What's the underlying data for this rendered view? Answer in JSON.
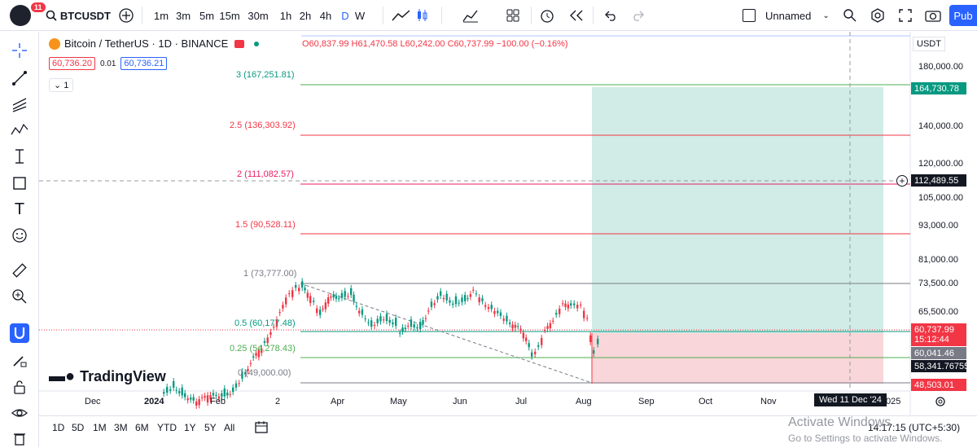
{
  "topbar": {
    "badge": "11",
    "symbol": "BTCUSDT",
    "intervals": [
      "1m",
      "3m",
      "5m",
      "15m",
      "30m",
      "1h",
      "2h",
      "4h",
      "D",
      "W"
    ],
    "active_interval": "D",
    "layout_name": "Unnamed",
    "publish": "Pub"
  },
  "legend": {
    "title": "Bitcoin / TetherUS · 1D · BINANCE",
    "ohlc": "O60,837.99 H61,470.58 L60,242.00 C60,737.99 −100.00 (−0.16%)",
    "bid": "60,736.20",
    "spread": "0.01",
    "ask": "60,736.21",
    "collapse_count": "1"
  },
  "axis": {
    "currency": "USDT",
    "ticks": [
      {
        "label": "180,000.00",
        "value": 180000
      },
      {
        "label": "140,000.00",
        "value": 140000
      },
      {
        "label": "120,000.00",
        "value": 120000
      },
      {
        "label": "105,000.00",
        "value": 105000
      },
      {
        "label": "93,000.00",
        "value": 93000
      },
      {
        "label": "81,000.00",
        "value": 81000
      },
      {
        "label": "73,500.00",
        "value": 73500
      },
      {
        "label": "65,500.00",
        "value": 65500
      }
    ],
    "price_tags": {
      "target": "164,730.78",
      "crosshair": "112,489.55",
      "last": "60,737.99",
      "countdown": "15:12:44",
      "level1": "60,041.46",
      "level2": "58,341.76755",
      "stop": "48,503.01"
    },
    "x_ticks": [
      "Dec",
      "2024",
      "Feb",
      "2",
      "Apr",
      "May",
      "Jun",
      "Jul",
      "Aug",
      "Sep",
      "Oct",
      "Nov",
      "025"
    ],
    "crosshair_date": "Wed 11 Dec '24"
  },
  "fib_levels": [
    {
      "label": "3 (167,251.81)",
      "color": "#089981"
    },
    {
      "label": "2.5 (136,303.92)",
      "color": "#f23645"
    },
    {
      "label": "2 (111,082.57)",
      "color": "#e91e63"
    },
    {
      "label": "1.5 (90,528.11)",
      "color": "#f23645"
    },
    {
      "label": "1 (73,777.00)",
      "color": "#787b86"
    },
    {
      "label": "0.5 (60,177.48)",
      "color": "#089981"
    },
    {
      "label": "0.25 (54,278.43)",
      "color": "#4caf50"
    },
    {
      "label": "0 (49,000.00)",
      "color": "#787b86"
    }
  ],
  "watermark": "TradingView",
  "bottombar": {
    "ranges": [
      "1D",
      "5D",
      "1M",
      "3M",
      "6M",
      "YTD",
      "1Y",
      "5Y",
      "All"
    ],
    "clock": "14:17:15 (UTC+5:30)",
    "activate_title": "Activate Windows",
    "activate_sub": "Go to Settings to activate Windows."
  },
  "colors": {
    "green": "#089981",
    "red": "#f23645",
    "profit_zone": "#d1ece6",
    "loss_zone": "#f9d6d9"
  }
}
